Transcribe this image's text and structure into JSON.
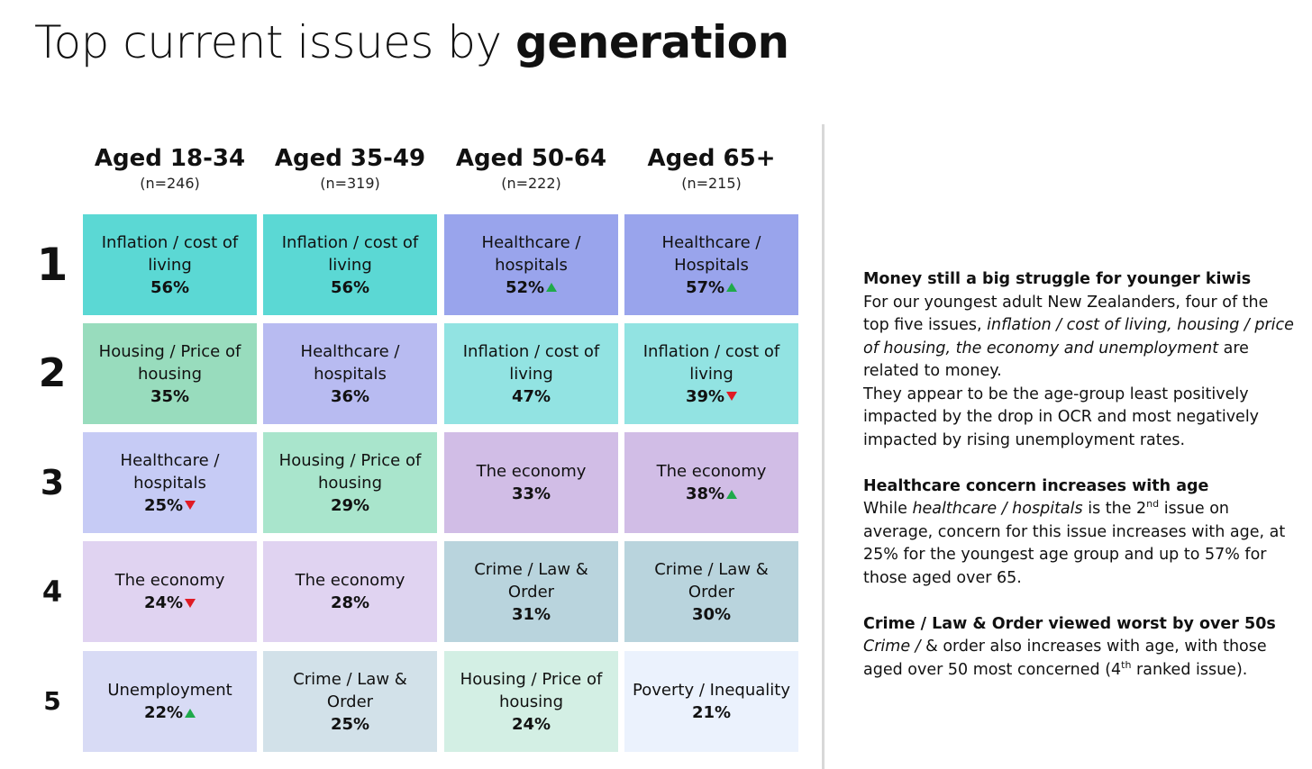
{
  "title": {
    "regular": "Top current issues by ",
    "bold": "generation"
  },
  "colors": {
    "up_arrow": "#1faa4b",
    "down_arrow": "#e01b24"
  },
  "columns": [
    {
      "label": "Aged 18-34",
      "n": "(n=246)"
    },
    {
      "label": "Aged 35-49",
      "n": "(n=319)"
    },
    {
      "label": "Aged 50-64",
      "n": "(n=222)"
    },
    {
      "label": "Aged 65+",
      "n": "(n=215)"
    }
  ],
  "ranks": [
    "1",
    "2",
    "3",
    "4",
    "5"
  ],
  "grid": [
    [
      {
        "issue": "Inflation / cost of living",
        "pct": "56%",
        "trend": "",
        "color": "#5bd8d4"
      },
      {
        "issue": "Inflation / cost of living",
        "pct": "56%",
        "trend": "",
        "color": "#5bd8d4"
      },
      {
        "issue": "Healthcare / hospitals",
        "pct": "52%",
        "trend": "up",
        "color": "#99a4ec"
      },
      {
        "issue": "Healthcare / Hospitals",
        "pct": "57%",
        "trend": "up",
        "color": "#99a4ec"
      }
    ],
    [
      {
        "issue": "Housing / Price of housing",
        "pct": "35%",
        "trend": "",
        "color": "#98dcbd"
      },
      {
        "issue": "Healthcare / hospitals",
        "pct": "36%",
        "trend": "",
        "color": "#b8bbf1"
      },
      {
        "issue": "Inflation / cost of living",
        "pct": "47%",
        "trend": "",
        "color": "#92e3e2"
      },
      {
        "issue": "Inflation / cost of living",
        "pct": "39%",
        "trend": "down",
        "color": "#92e3e2"
      }
    ],
    [
      {
        "issue": "Healthcare / hospitals",
        "pct": "25%",
        "trend": "down",
        "color": "#c6cbf5"
      },
      {
        "issue": "Housing / Price of housing",
        "pct": "29%",
        "trend": "",
        "color": "#a9e5cc"
      },
      {
        "issue": "The economy",
        "pct": "33%",
        "trend": "",
        "color": "#d1bde6"
      },
      {
        "issue": "The economy",
        "pct": "38%",
        "trend": "up",
        "color": "#d1bde6"
      }
    ],
    [
      {
        "issue": "The economy",
        "pct": "24%",
        "trend": "down",
        "color": "#e0d3f1"
      },
      {
        "issue": "The economy",
        "pct": "28%",
        "trend": "",
        "color": "#e0d3f1"
      },
      {
        "issue": "Crime / Law & Order",
        "pct": "31%",
        "trend": "",
        "color": "#b9d4dd"
      },
      {
        "issue": "Crime / Law & Order",
        "pct": "30%",
        "trend": "",
        "color": "#b9d4dd"
      }
    ],
    [
      {
        "issue": "Unemployment",
        "pct": "22%",
        "trend": "up",
        "color": "#d8dbf5"
      },
      {
        "issue": "Crime / Law & Order",
        "pct": "25%",
        "trend": "",
        "color": "#d2e1e9"
      },
      {
        "issue": "Housing / Price of housing",
        "pct": "24%",
        "trend": "",
        "color": "#d3efe4"
      },
      {
        "issue": "Poverty / Inequality",
        "pct": "21%",
        "trend": "",
        "color": "#ebf2fd"
      }
    ]
  ],
  "notes": {
    "p1": {
      "heading": "Money still a big struggle for younger kiwis",
      "text1": "For our youngest adult New Zealanders, four of the top five issues, ",
      "italic1": "inflation / cost of living, housing / price of housing, the economy and unemployment",
      "text2": " are related to money.",
      "text3": "They appear to be the age-group least positively impacted by the drop in OCR and most negatively impacted by rising unemployment rates."
    },
    "p2": {
      "heading": "Healthcare concern increases with age",
      "text1": "While ",
      "italic1": "healthcare / hospitals",
      "text2": " is the 2",
      "sup1": "nd",
      "text3": " issue on average, concern for this issue increases with age, at 25% for the youngest age group and up to 57% for those aged over 65."
    },
    "p3": {
      "heading": "Crime / Law & Order viewed worst by over 50s",
      "italic1": "Crime /",
      "text1": " & order also increases with age, with those aged over 50 most concerned (4",
      "sup1": "th",
      "text2": " ranked issue)."
    }
  }
}
